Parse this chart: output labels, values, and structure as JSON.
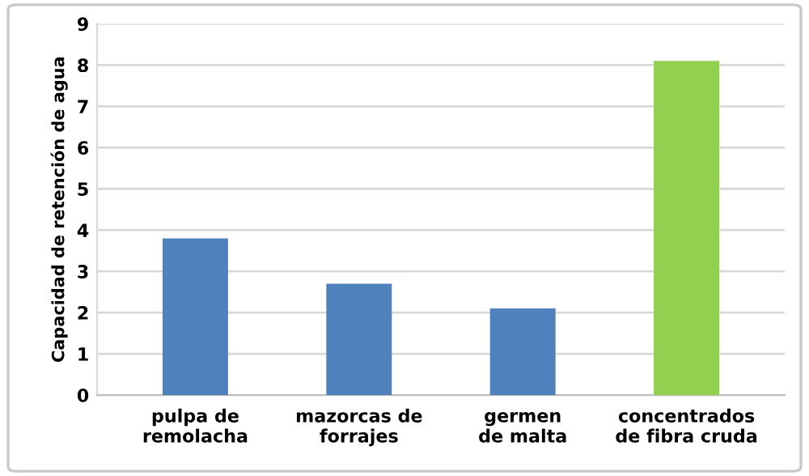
{
  "chart_data": {
    "type": "bar",
    "ylabel": "Capacidad de retención de agua",
    "categories": [
      "pulpa de\nremolacha",
      "mazorcas de\nforrajes",
      "germen\nde malta",
      "concentrados\nde fibra cruda"
    ],
    "values": [
      3.8,
      2.7,
      2.1,
      8.1
    ],
    "colors": [
      "#4f81bd",
      "#4f81bd",
      "#4f81bd",
      "#92d050"
    ],
    "ylim": [
      0,
      9
    ],
    "yticks": [
      0,
      1,
      2,
      3,
      4,
      5,
      6,
      7,
      8,
      9
    ],
    "grid": "y",
    "legend": false
  }
}
